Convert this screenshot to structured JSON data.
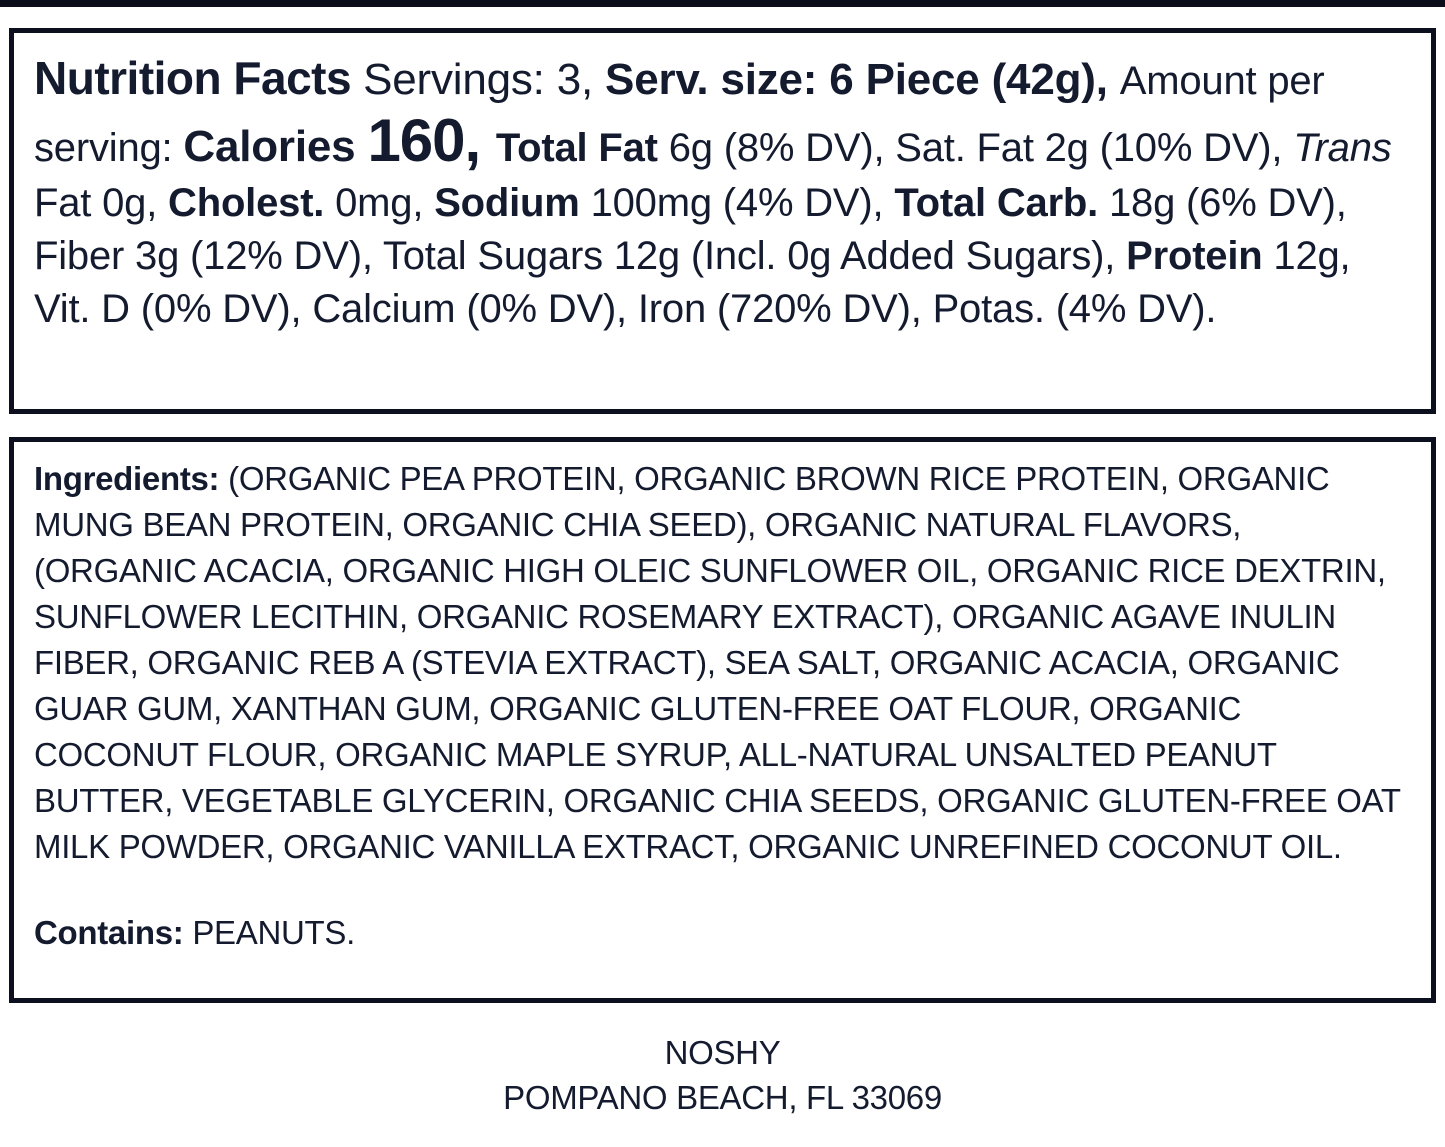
{
  "page": {
    "background_color": "#ffffff",
    "text_color": "#141b2f",
    "border_color": "#0c101e"
  },
  "nutrition_panel": {
    "title": "Nutrition Facts",
    "servings": " Servings: 3, ",
    "serving_size": "Serv. size: 6 Piece (42g), ",
    "amount_per_serving_label": "Amount per serving: ",
    "calories_label": "Calories ",
    "calories_value": "160, ",
    "total_fat_label": "Total Fat ",
    "total_fat_value": "6g (8% DV), Sat. Fat 2g (10% DV), ",
    "trans_word": "Trans",
    "trans_fat_value": " Fat 0g, ",
    "cholesterol_label": "Cholest. ",
    "cholesterol_value": "0mg, ",
    "sodium_label": "Sodium ",
    "sodium_value": "100mg (4% DV), ",
    "total_carb_label": "Total Carb. ",
    "total_carb_value": "18g (6% DV), Fiber 3g (12% DV), Total Sugars 12g (Incl. 0g Added Sugars), ",
    "protein_label": "Protein ",
    "protein_value": "12g, Vit. D (0% DV), Calcium (0% DV), Iron (720% DV), Potas. (4% DV)."
  },
  "ingredients_panel": {
    "label": "Ingredients: ",
    "text": "(ORGANIC PEA PROTEIN, ORGANIC BROWN RICE PROTEIN, ORGANIC MUNG BEAN PROTEIN, ORGANIC CHIA SEED), ORGANIC NATURAL FLAVORS, (ORGANIC ACACIA, ORGANIC HIGH OLEIC SUNFLOWER OIL, ORGANIC RICE DEXTRIN, SUNFLOWER LECITHIN, ORGANIC ROSEMARY EXTRACT), ORGANIC AGAVE INULIN FIBER, ORGANIC REB A (STEVIA EXTRACT), SEA SALT, ORGANIC ACACIA, ORGANIC GUAR GUM, XANTHAN GUM, ORGANIC GLUTEN-FREE OAT FLOUR, ORGANIC COCONUT FLOUR, ORGANIC MAPLE SYRUP, ALL-NATURAL UNSALTED PEANUT BUTTER, VEGETABLE GLYCERIN, ORGANIC CHIA SEEDS, ORGANIC GLUTEN-FREE OAT MILK POWDER, ORGANIC VANILLA EXTRACT, ORGANIC UNREFINED COCONUT OIL.",
    "contains_label": "Contains: ",
    "contains_text": "PEANUTS."
  },
  "footer": {
    "brand": "NOSHY",
    "address": "POMPANO BEACH, FL 33069"
  }
}
